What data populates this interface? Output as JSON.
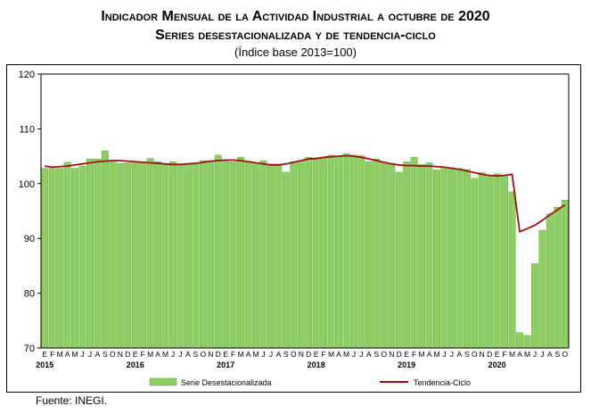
{
  "title_line1": "Indicador Mensual de la Actividad Industrial a octubre de 2020",
  "title_line2": "Series desestacionalizada y de tendencia-ciclo",
  "subtitle": "(Índice base 2013=100)",
  "source": "Fuente: INEGI.",
  "colors": {
    "bar_fill": "#8dcf62",
    "bar_stroke": "#5a9a3a",
    "trend": "#a01010"
  },
  "chart_data": {
    "type": "bar",
    "ylim": [
      70,
      120
    ],
    "yticks": [
      "70",
      "80",
      "90",
      "100",
      "110",
      "120"
    ],
    "grid": false,
    "legend_placement": "bottom",
    "months": [
      "E",
      "F",
      "M",
      "A",
      "M",
      "J",
      "J",
      "A",
      "S",
      "O",
      "N",
      "D"
    ],
    "years": [
      "2015",
      "2016",
      "2017",
      "2018",
      "2019",
      "2020"
    ],
    "series": [
      {
        "name": "Serie Desestacionalizada",
        "type": "bar",
        "values": [
          102.8,
          102.8,
          102.8,
          103.9,
          102.8,
          103.2,
          104.5,
          104.5,
          106.0,
          104.2,
          103.7,
          103.8,
          104.0,
          104.0,
          104.6,
          104.0,
          103.4,
          104.0,
          103.6,
          103.7,
          103.8,
          104.2,
          104.0,
          105.2,
          104.3,
          104.0,
          104.8,
          104.1,
          103.8,
          104.2,
          103.6,
          103.6,
          102.1,
          104.0,
          104.2,
          104.8,
          104.6,
          104.8,
          105.2,
          105.0,
          105.5,
          105.2,
          105.1,
          104.0,
          104.5,
          103.9,
          103.6,
          102.1,
          104.0,
          104.8,
          103.5,
          103.8,
          102.5,
          103.0,
          102.9,
          102.8,
          102.6,
          101.0,
          102.0,
          101.4,
          101.8,
          101.5,
          98.5,
          72.8,
          72.3,
          85.4,
          91.5,
          94.5,
          95.7,
          97.0
        ]
      },
      {
        "name": "Tendencia-Ciclo",
        "type": "line",
        "values": [
          103.2,
          103.0,
          103.1,
          103.2,
          103.4,
          103.6,
          103.8,
          104.0,
          104.1,
          104.2,
          104.2,
          104.1,
          104.0,
          103.9,
          103.8,
          103.7,
          103.6,
          103.5,
          103.5,
          103.6,
          103.7,
          103.9,
          104.1,
          104.2,
          104.3,
          104.3,
          104.2,
          104.0,
          103.8,
          103.6,
          103.4,
          103.4,
          103.6,
          103.9,
          104.2,
          104.5,
          104.6,
          104.8,
          104.9,
          105.0,
          105.1,
          105.0,
          104.8,
          104.5,
          104.2,
          103.9,
          103.6,
          103.4,
          103.3,
          103.3,
          103.2,
          103.2,
          103.1,
          103.0,
          102.8,
          102.6,
          102.3,
          102.0,
          101.7,
          101.5,
          101.4,
          101.5,
          101.7,
          91.2,
          91.8,
          92.4,
          93.3,
          94.3,
          95.2,
          96.1
        ]
      }
    ]
  }
}
